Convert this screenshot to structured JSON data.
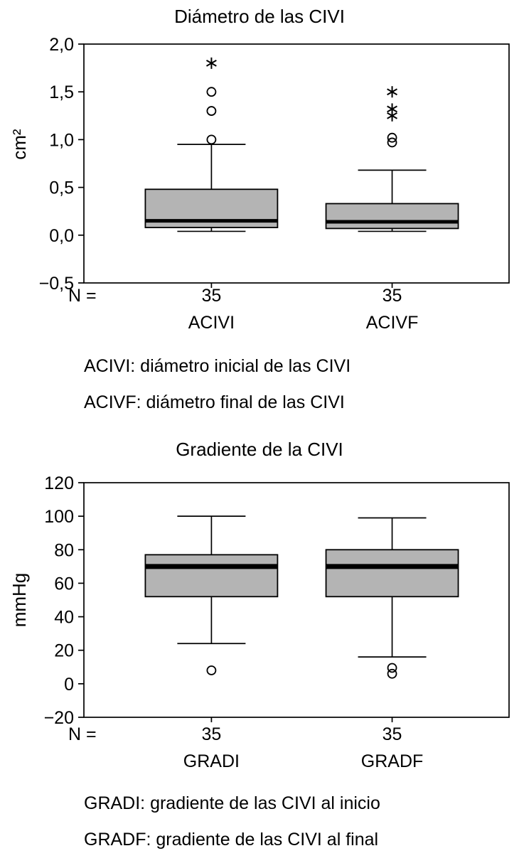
{
  "chart_data": [
    {
      "type": "boxplot",
      "title": "Diámetro de las CIVI",
      "ylabel": "cm²",
      "ylim": [
        -0.5,
        2.0
      ],
      "grid": false,
      "legend": "none",
      "yticks": [
        {
          "value": 2.0,
          "label": "2,0"
        },
        {
          "value": 1.5,
          "label": "1,5"
        },
        {
          "value": 1.0,
          "label": "1,0"
        },
        {
          "value": 0.5,
          "label": "0,5"
        },
        {
          "value": 0.0,
          "label": "0,0"
        },
        {
          "value": -0.5,
          "label": "−0,5"
        }
      ],
      "n_prefix": "N =",
      "categories": [
        {
          "name": "ACIVI",
          "n": "35"
        },
        {
          "name": "ACIVF",
          "n": "35"
        }
      ],
      "boxes": [
        {
          "whisker_low": 0.04,
          "q1": 0.08,
          "median": 0.15,
          "q3": 0.48,
          "whisker_high": 0.95,
          "outliers_circle": [
            1.0,
            1.3,
            1.5
          ],
          "outliers_star": [
            1.8
          ]
        },
        {
          "whisker_low": 0.04,
          "q1": 0.07,
          "median": 0.14,
          "q3": 0.33,
          "whisker_high": 0.68,
          "outliers_circle": [
            0.97,
            1.02
          ],
          "outliers_star": [
            1.25,
            1.32,
            1.5
          ]
        }
      ],
      "footnotes": [
        "ACIVI: diámetro inicial de las CIVI",
        "ACIVF: diámetro final de las CIVI"
      ],
      "colors": {
        "box_fill": "#b4b4b4",
        "box_border": "#000000",
        "median": "#000000",
        "axis": "#000000"
      }
    },
    {
      "type": "boxplot",
      "title": "Gradiente de la CIVI",
      "ylabel": "mmHg",
      "ylim": [
        -20,
        120
      ],
      "grid": false,
      "legend": "none",
      "yticks": [
        {
          "value": 120,
          "label": "120"
        },
        {
          "value": 100,
          "label": "100"
        },
        {
          "value": 80,
          "label": "80"
        },
        {
          "value": 60,
          "label": "60"
        },
        {
          "value": 40,
          "label": "40"
        },
        {
          "value": 20,
          "label": "20"
        },
        {
          "value": 0,
          "label": "0"
        },
        {
          "value": -20,
          "label": "−20"
        }
      ],
      "n_prefix": "N =",
      "categories": [
        {
          "name": "GRADI",
          "n": "35"
        },
        {
          "name": "GRADF",
          "n": "35"
        }
      ],
      "boxes": [
        {
          "whisker_low": 24,
          "q1": 52,
          "median": 70,
          "q3": 77,
          "whisker_high": 100,
          "outliers_circle": [
            8
          ],
          "outliers_star": []
        },
        {
          "whisker_low": 16,
          "q1": 52,
          "median": 70,
          "q3": 80,
          "whisker_high": 99,
          "outliers_circle": [
            6,
            9.5
          ],
          "outliers_star": []
        }
      ],
      "footnotes": [
        "GRADI: gradiente de las CIVI al inicio",
        "GRADF: gradiente de las CIVI al final"
      ],
      "colors": {
        "box_fill": "#b4b4b4",
        "box_border": "#000000",
        "median": "#000000",
        "axis": "#000000"
      }
    }
  ]
}
